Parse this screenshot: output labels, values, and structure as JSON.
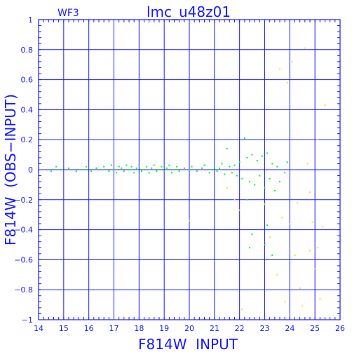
{
  "chart_data": {
    "type": "scatter",
    "title": "lmc_u48z01",
    "panel_label": "WF3",
    "xlabel": "F814W  INPUT",
    "ylabel": "F814W  (OBS−INPUT)",
    "xlim": [
      14,
      26
    ],
    "ylim": [
      -1,
      1
    ],
    "x_ticks": [
      14,
      15,
      16,
      17,
      18,
      19,
      20,
      21,
      22,
      23,
      24,
      25,
      26
    ],
    "y_ticks": [
      1,
      0.8,
      0.6,
      0.4,
      0.2,
      0,
      -0.2,
      -0.4,
      -0.6,
      -0.8,
      -1
    ],
    "y_tick_labels": [
      "1",
      "0.8",
      "0.6",
      "0.4",
      "0.2",
      "0",
      "−0.2",
      "−0.4",
      "−0.6",
      "−0.8",
      "−1"
    ],
    "grid": true,
    "series": [
      {
        "color": "#00ff00",
        "points": [
          [
            14.5,
            -0.01
          ],
          [
            14.7,
            0.02
          ],
          [
            14.9,
            0.0
          ],
          [
            15.2,
            0.01
          ],
          [
            15.5,
            -0.01
          ],
          [
            15.8,
            0.0
          ],
          [
            15.9,
            0.02
          ],
          [
            16.1,
            -0.01
          ],
          [
            16.3,
            0.01
          ],
          [
            16.5,
            0.0
          ],
          [
            16.6,
            0.02
          ],
          [
            16.8,
            -0.01
          ],
          [
            16.9,
            0.03
          ],
          [
            17.0,
            0.0
          ],
          [
            17.1,
            -0.02
          ],
          [
            17.2,
            0.02
          ],
          [
            17.3,
            0.01
          ],
          [
            17.4,
            -0.01
          ],
          [
            17.5,
            0.03
          ],
          [
            17.6,
            0.0
          ],
          [
            17.7,
            0.02
          ],
          [
            17.8,
            -0.02
          ],
          [
            17.9,
            0.01
          ],
          [
            18.0,
            0.03
          ],
          [
            18.1,
            -0.01
          ],
          [
            18.2,
            0.0
          ],
          [
            18.3,
            0.02
          ],
          [
            18.4,
            -0.02
          ],
          [
            18.5,
            0.01
          ],
          [
            18.6,
            0.03
          ],
          [
            18.7,
            -0.01
          ],
          [
            18.8,
            0.0
          ],
          [
            18.9,
            0.02
          ],
          [
            19.0,
            -0.01
          ],
          [
            19.1,
            0.01
          ],
          [
            19.2,
            0.03
          ],
          [
            19.3,
            -0.02
          ],
          [
            19.4,
            0.0
          ],
          [
            19.5,
            0.02
          ],
          [
            19.6,
            -0.01
          ],
          [
            19.8,
            0.01
          ],
          [
            20.0,
            0.0
          ],
          [
            20.1,
            0.02
          ],
          [
            20.3,
            -0.01
          ],
          [
            20.5,
            0.01
          ],
          [
            20.6,
            0.03
          ],
          [
            20.8,
            -0.02
          ],
          [
            20.9,
            0.0
          ],
          [
            21.0,
            0.02
          ],
          [
            21.1,
            -0.01
          ],
          [
            21.2,
            0.01
          ],
          [
            21.3,
            0.04
          ],
          [
            21.4,
            -0.03
          ],
          [
            21.5,
            0.14
          ],
          [
            21.6,
            0.02
          ],
          [
            21.7,
            -0.02
          ],
          [
            21.8,
            0.03
          ],
          [
            21.9,
            -0.04
          ],
          [
            22.0,
            0.05
          ],
          [
            22.1,
            -0.06
          ],
          [
            22.2,
            0.21
          ],
          [
            22.3,
            0.08
          ],
          [
            22.4,
            -0.08
          ],
          [
            22.5,
            0.1
          ],
          [
            22.6,
            -0.1
          ],
          [
            22.7,
            0.06
          ],
          [
            22.8,
            -0.04
          ],
          [
            22.9,
            0.09
          ],
          [
            23.0,
            -0.12
          ],
          [
            23.1,
            0.11
          ],
          [
            23.2,
            -0.06
          ],
          [
            23.3,
            0.04
          ],
          [
            23.4,
            -0.14
          ],
          [
            23.5,
            0.02
          ],
          [
            23.6,
            -0.08
          ],
          [
            23.8,
            -0.02
          ],
          [
            23.9,
            0.05
          ],
          [
            22.3,
            -0.2
          ],
          [
            22.5,
            -0.43
          ],
          [
            22.4,
            -0.52
          ],
          [
            23.0,
            -0.5
          ],
          [
            23.1,
            -0.37
          ],
          [
            23.3,
            -0.57
          ],
          [
            24.0,
            0.26
          ]
        ]
      },
      {
        "color": "#ffdd00",
        "points": [
          [
            20.0,
            -0.34
          ],
          [
            21.5,
            -0.12
          ],
          [
            21.8,
            -0.2
          ],
          [
            22.0,
            -0.27
          ],
          [
            22.1,
            -0.93
          ],
          [
            23.0,
            -0.23
          ],
          [
            23.2,
            -0.45
          ],
          [
            23.5,
            -0.7
          ],
          [
            23.6,
            0.67
          ],
          [
            23.7,
            -0.32
          ],
          [
            23.8,
            -0.88
          ],
          [
            23.9,
            0.58
          ],
          [
            24.0,
            -0.36
          ],
          [
            24.1,
            0.72
          ],
          [
            24.2,
            -0.57
          ],
          [
            24.3,
            -0.22
          ],
          [
            24.4,
            -0.79
          ],
          [
            24.5,
            -0.91
          ],
          [
            24.6,
            0.81
          ],
          [
            24.7,
            0.04
          ],
          [
            24.8,
            -0.54
          ],
          [
            24.9,
            -0.35
          ],
          [
            25.0,
            -0.66
          ],
          [
            25.1,
            0.2
          ],
          [
            25.2,
            -0.86
          ],
          [
            25.3,
            -0.38
          ],
          [
            25.4,
            0.43
          ],
          [
            25.1,
            -0.52
          ],
          [
            24.8,
            -0.15
          ]
        ]
      }
    ]
  }
}
